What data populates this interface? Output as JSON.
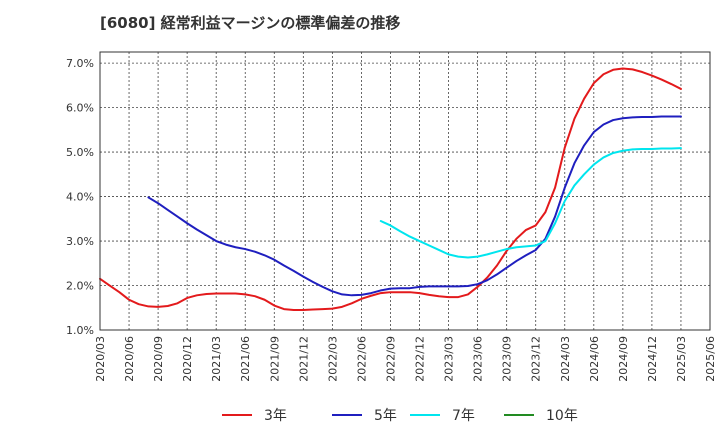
{
  "title": "[6080]  経常利益マージンの標準偏差の推移",
  "chart_data": {
    "type": "line",
    "title": "[6080]  経常利益マージンの標準偏差の推移",
    "xlabel": "",
    "ylabel": "",
    "ylim": [
      1.0,
      7.25
    ],
    "y_ticks": [
      "1.0%",
      "2.0%",
      "3.0%",
      "4.0%",
      "5.0%",
      "6.0%",
      "7.0%"
    ],
    "x_ticks": [
      "2020/03",
      "2020/06",
      "2020/09",
      "2020/12",
      "2021/03",
      "2021/06",
      "2021/09",
      "2021/12",
      "2022/03",
      "2022/06",
      "2022/09",
      "2022/12",
      "2023/03",
      "2023/06",
      "2023/09",
      "2023/12",
      "2024/03",
      "2024/06",
      "2024/09",
      "2024/12",
      "2025/03",
      "2025/06"
    ],
    "grid": true,
    "legend_position": "bottom",
    "series": [
      {
        "name": "3年",
        "color": "#e31a1c",
        "points": [
          [
            "2020/03",
            2.15
          ],
          [
            "2020/04",
            2.0
          ],
          [
            "2020/05",
            1.85
          ],
          [
            "2020/06",
            1.68
          ],
          [
            "2020/07",
            1.58
          ],
          [
            "2020/08",
            1.53
          ],
          [
            "2020/09",
            1.52
          ],
          [
            "2020/10",
            1.54
          ],
          [
            "2020/11",
            1.6
          ],
          [
            "2020/12",
            1.72
          ],
          [
            "2021/01",
            1.78
          ],
          [
            "2021/02",
            1.81
          ],
          [
            "2021/03",
            1.82
          ],
          [
            "2021/04",
            1.82
          ],
          [
            "2021/05",
            1.82
          ],
          [
            "2021/06",
            1.8
          ],
          [
            "2021/07",
            1.76
          ],
          [
            "2021/08",
            1.68
          ],
          [
            "2021/09",
            1.55
          ],
          [
            "2021/10",
            1.47
          ],
          [
            "2021/11",
            1.45
          ],
          [
            "2021/12",
            1.45
          ],
          [
            "2022/01",
            1.46
          ],
          [
            "2022/02",
            1.47
          ],
          [
            "2022/03",
            1.48
          ],
          [
            "2022/04",
            1.52
          ],
          [
            "2022/05",
            1.6
          ],
          [
            "2022/06",
            1.7
          ],
          [
            "2022/07",
            1.77
          ],
          [
            "2022/08",
            1.83
          ],
          [
            "2022/09",
            1.85
          ],
          [
            "2022/10",
            1.85
          ],
          [
            "2022/11",
            1.85
          ],
          [
            "2022/12",
            1.83
          ],
          [
            "2023/01",
            1.79
          ],
          [
            "2023/02",
            1.76
          ],
          [
            "2023/03",
            1.74
          ],
          [
            "2023/04",
            1.74
          ],
          [
            "2023/05",
            1.8
          ],
          [
            "2023/06",
            1.97
          ],
          [
            "2023/07",
            2.18
          ],
          [
            "2023/08",
            2.45
          ],
          [
            "2023/09",
            2.78
          ],
          [
            "2023/10",
            3.05
          ],
          [
            "2023/11",
            3.25
          ],
          [
            "2023/12",
            3.35
          ],
          [
            "2024/01",
            3.65
          ],
          [
            "2024/02",
            4.2
          ],
          [
            "2024/03",
            5.1
          ],
          [
            "2024/04",
            5.75
          ],
          [
            "2024/05",
            6.2
          ],
          [
            "2024/06",
            6.55
          ],
          [
            "2024/07",
            6.75
          ],
          [
            "2024/08",
            6.85
          ],
          [
            "2024/09",
            6.88
          ],
          [
            "2024/10",
            6.86
          ],
          [
            "2024/11",
            6.8
          ],
          [
            "2024/12",
            6.72
          ],
          [
            "2025/01",
            6.63
          ],
          [
            "2025/02",
            6.53
          ],
          [
            "2025/03",
            6.42
          ]
        ]
      },
      {
        "name": "5年",
        "color": "#1f1fbf",
        "points": [
          [
            "2020/08",
            3.98
          ],
          [
            "2020/09",
            3.85
          ],
          [
            "2020/10",
            3.7
          ],
          [
            "2020/11",
            3.55
          ],
          [
            "2020/12",
            3.4
          ],
          [
            "2021/01",
            3.26
          ],
          [
            "2021/02",
            3.13
          ],
          [
            "2021/03",
            3.0
          ],
          [
            "2021/04",
            2.92
          ],
          [
            "2021/05",
            2.86
          ],
          [
            "2021/06",
            2.82
          ],
          [
            "2021/07",
            2.76
          ],
          [
            "2021/08",
            2.68
          ],
          [
            "2021/09",
            2.58
          ],
          [
            "2021/10",
            2.45
          ],
          [
            "2021/11",
            2.33
          ],
          [
            "2021/12",
            2.2
          ],
          [
            "2022/01",
            2.08
          ],
          [
            "2022/02",
            1.97
          ],
          [
            "2022/03",
            1.87
          ],
          [
            "2022/04",
            1.8
          ],
          [
            "2022/05",
            1.78
          ],
          [
            "2022/06",
            1.79
          ],
          [
            "2022/07",
            1.83
          ],
          [
            "2022/08",
            1.89
          ],
          [
            "2022/09",
            1.93
          ],
          [
            "2022/10",
            1.94
          ],
          [
            "2022/11",
            1.94
          ],
          [
            "2022/12",
            1.97
          ],
          [
            "2023/01",
            1.98
          ],
          [
            "2023/02",
            1.98
          ],
          [
            "2023/03",
            1.98
          ],
          [
            "2023/04",
            1.98
          ],
          [
            "2023/05",
            1.99
          ],
          [
            "2023/06",
            2.03
          ],
          [
            "2023/07",
            2.12
          ],
          [
            "2023/08",
            2.25
          ],
          [
            "2023/09",
            2.4
          ],
          [
            "2023/10",
            2.55
          ],
          [
            "2023/11",
            2.68
          ],
          [
            "2023/12",
            2.8
          ],
          [
            "2024/01",
            3.05
          ],
          [
            "2024/02",
            3.55
          ],
          [
            "2024/03",
            4.2
          ],
          [
            "2024/04",
            4.75
          ],
          [
            "2024/05",
            5.15
          ],
          [
            "2024/06",
            5.45
          ],
          [
            "2024/07",
            5.62
          ],
          [
            "2024/08",
            5.72
          ],
          [
            "2024/09",
            5.76
          ],
          [
            "2024/10",
            5.78
          ],
          [
            "2024/11",
            5.79
          ],
          [
            "2024/12",
            5.79
          ],
          [
            "2025/01",
            5.8
          ],
          [
            "2025/02",
            5.8
          ],
          [
            "2025/03",
            5.8
          ]
        ]
      },
      {
        "name": "7年",
        "color": "#00e5ee",
        "points": [
          [
            "2022/08",
            3.45
          ],
          [
            "2022/09",
            3.35
          ],
          [
            "2022/10",
            3.22
          ],
          [
            "2022/11",
            3.1
          ],
          [
            "2022/12",
            3.0
          ],
          [
            "2023/01",
            2.9
          ],
          [
            "2023/02",
            2.8
          ],
          [
            "2023/03",
            2.7
          ],
          [
            "2023/04",
            2.65
          ],
          [
            "2023/05",
            2.63
          ],
          [
            "2023/06",
            2.65
          ],
          [
            "2023/07",
            2.7
          ],
          [
            "2023/08",
            2.76
          ],
          [
            "2023/09",
            2.82
          ],
          [
            "2023/10",
            2.86
          ],
          [
            "2023/11",
            2.88
          ],
          [
            "2023/12",
            2.9
          ],
          [
            "2024/01",
            3.0
          ],
          [
            "2024/02",
            3.4
          ],
          [
            "2024/03",
            3.9
          ],
          [
            "2024/04",
            4.25
          ],
          [
            "2024/05",
            4.5
          ],
          [
            "2024/06",
            4.72
          ],
          [
            "2024/07",
            4.88
          ],
          [
            "2024/08",
            4.98
          ],
          [
            "2024/09",
            5.03
          ],
          [
            "2024/10",
            5.06
          ],
          [
            "2024/11",
            5.07
          ],
          [
            "2024/12",
            5.07
          ],
          [
            "2025/01",
            5.08
          ],
          [
            "2025/02",
            5.08
          ],
          [
            "2025/03",
            5.09
          ]
        ]
      },
      {
        "name": "10年",
        "color": "#228b22",
        "points": []
      }
    ]
  }
}
